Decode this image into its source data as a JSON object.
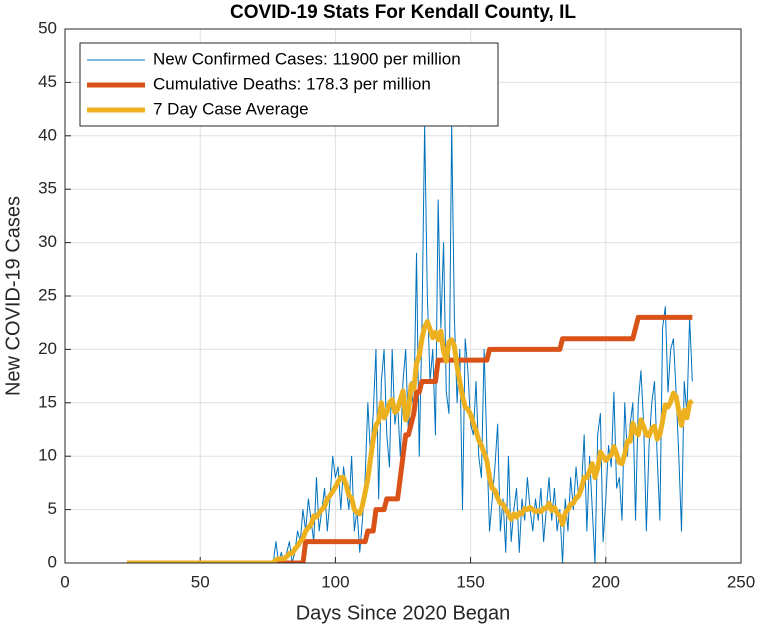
{
  "chart_data": {
    "type": "line",
    "title": "COVID-19 Stats For Kendall County, IL",
    "xlabel": "Days Since 2020 Began",
    "ylabel": "New COVID-19 Cases",
    "xlim": [
      0,
      250
    ],
    "xticks": [
      0,
      50,
      100,
      150,
      200,
      250
    ],
    "ylim": [
      0,
      50
    ],
    "yticks": [
      0,
      5,
      10,
      15,
      20,
      25,
      30,
      35,
      40,
      45,
      50
    ],
    "grid": true,
    "legend": "upper left",
    "x": [
      23,
      76,
      77,
      78,
      79,
      80,
      81,
      82,
      83,
      84,
      85,
      86,
      87,
      88,
      89,
      90,
      91,
      92,
      93,
      94,
      95,
      96,
      97,
      98,
      99,
      100,
      101,
      102,
      103,
      104,
      105,
      106,
      107,
      108,
      109,
      110,
      111,
      112,
      113,
      114,
      115,
      116,
      117,
      118,
      119,
      120,
      121,
      122,
      123,
      124,
      125,
      126,
      127,
      128,
      129,
      130,
      131,
      132,
      133,
      134,
      135,
      136,
      137,
      138,
      139,
      140,
      141,
      142,
      143,
      144,
      145,
      146,
      147,
      148,
      149,
      150,
      151,
      152,
      153,
      154,
      155,
      156,
      157,
      158,
      159,
      160,
      161,
      162,
      163,
      164,
      165,
      166,
      167,
      168,
      169,
      170,
      171,
      172,
      173,
      174,
      175,
      176,
      177,
      178,
      179,
      180,
      181,
      182,
      183,
      184,
      185,
      186,
      187,
      188,
      189,
      190,
      191,
      192,
      193,
      194,
      195,
      196,
      197,
      198,
      199,
      200,
      201,
      202,
      203,
      204,
      205,
      206,
      207,
      208,
      209,
      210,
      211,
      212,
      213,
      214,
      215,
      216,
      217,
      218,
      219,
      220,
      221,
      222,
      223,
      224,
      225,
      226,
      227,
      228,
      229,
      230,
      231,
      232
    ],
    "series": [
      {
        "name": "New Confirmed Cases: 11900 per million",
        "color": "#0072bd",
        "width": 1,
        "values": [
          0,
          0,
          0,
          2,
          0,
          1,
          0,
          1,
          2,
          0,
          1,
          3,
          2,
          5,
          3,
          6,
          4,
          2,
          8,
          3,
          5,
          7,
          3,
          6,
          10,
          8,
          9,
          5,
          9,
          7,
          5,
          10,
          3,
          5,
          1,
          4,
          8,
          15,
          10,
          14,
          20,
          6,
          17,
          20,
          12,
          9,
          20,
          13,
          15,
          10,
          17,
          20,
          12,
          17,
          14,
          29,
          10,
          22,
          41,
          25,
          17,
          20,
          12,
          34,
          22,
          30,
          16,
          14,
          41,
          23,
          15,
          20,
          5,
          21,
          18,
          13,
          12,
          17,
          10,
          8,
          20,
          11,
          3,
          6,
          9,
          13,
          3,
          6,
          1,
          10,
          2,
          5,
          7,
          1,
          6,
          4,
          8,
          5,
          3,
          6,
          4,
          7,
          2,
          5,
          8,
          4,
          7,
          3,
          5,
          0,
          6,
          3,
          8,
          5,
          9,
          6,
          7,
          12,
          3,
          10,
          5,
          0,
          12,
          14,
          2,
          6,
          11,
          9,
          16,
          7,
          8,
          4,
          15,
          10,
          13,
          15,
          4,
          15,
          18,
          13,
          3,
          11,
          15,
          17,
          10,
          4,
          22,
          24,
          16,
          20,
          21,
          16,
          10,
          3,
          17,
          14,
          23,
          17
        ]
      },
      {
        "name": "Cumulative Deaths: 178.3 per million",
        "color": "#d95319",
        "width": 5,
        "values": [
          0,
          0,
          0,
          0,
          0,
          0,
          0,
          0,
          0,
          0,
          0,
          0,
          0,
          0,
          2,
          2,
          2,
          2,
          2,
          2,
          2,
          2,
          2,
          2,
          2,
          2,
          2,
          2,
          2,
          2,
          2,
          2,
          2,
          2,
          2,
          2,
          2,
          3,
          3,
          3,
          5,
          5,
          5,
          5,
          6,
          6,
          6,
          6,
          6,
          8,
          10,
          12,
          12,
          13,
          14,
          16,
          16,
          17,
          17,
          17,
          17,
          17,
          17,
          19,
          19,
          19,
          19,
          19,
          19,
          19,
          19,
          19,
          19,
          19,
          19,
          19,
          19,
          19,
          19,
          19,
          19,
          19,
          20,
          20,
          20,
          20,
          20,
          20,
          20,
          20,
          20,
          20,
          20,
          20,
          20,
          20,
          20,
          20,
          20,
          20,
          20,
          20,
          20,
          20,
          20,
          20,
          20,
          20,
          20,
          21,
          21,
          21,
          21,
          21,
          21,
          21,
          21,
          21,
          21,
          21,
          21,
          21,
          21,
          21,
          21,
          21,
          21,
          21,
          21,
          21,
          21,
          21,
          21,
          21,
          21,
          21,
          22,
          23,
          23,
          23,
          23,
          23,
          23,
          23,
          23,
          23,
          23,
          23,
          23,
          23,
          23,
          23,
          23,
          23,
          23,
          23,
          23,
          23
        ]
      },
      {
        "name": "7 Day Case Average",
        "color": "#edb120",
        "width": 5,
        "values": [
          0,
          0,
          0,
          0.3,
          0.4,
          0.4,
          0.4,
          0.6,
          0.9,
          0.9,
          1.3,
          1.6,
          2,
          2.3,
          3,
          3.3,
          3.6,
          4.4,
          4.3,
          4.7,
          5,
          5.3,
          6,
          6.3,
          6.7,
          7.1,
          7.6,
          8,
          8,
          7.3,
          6.3,
          6.1,
          5,
          4.7,
          4.6,
          5.4,
          6.6,
          7.9,
          9.8,
          11.6,
          12.9,
          13.3,
          15,
          13.6,
          14.1,
          15,
          15.3,
          14.1,
          14.4,
          15.3,
          16.1,
          13.4,
          14.1,
          16.7,
          16.3,
          18.7,
          19.4,
          21,
          22.1,
          22.6,
          21.9,
          21.1,
          21.6,
          20.9,
          21.7,
          19.8,
          18.9,
          20.7,
          20.9,
          20.3,
          18.4,
          17,
          15.6,
          14.6,
          14.4,
          13.9,
          13.1,
          12.4,
          11.5,
          11,
          10.3,
          9.6,
          8,
          7,
          6.8,
          6.1,
          5.6,
          5.5,
          5,
          4.6,
          4.1,
          4.6,
          4.3,
          4.7,
          4.6,
          5.1,
          5,
          5.2,
          5,
          4.8,
          4.9,
          4.8,
          5.1,
          5.1,
          5.6,
          4.9,
          5.2,
          4.7,
          4.4,
          3.6,
          4.7,
          5,
          5.5,
          5.6,
          6.1,
          6.3,
          7,
          8,
          8,
          8.6,
          9.3,
          8,
          8.9,
          10.4,
          10,
          9.6,
          9.9,
          10.1,
          10.9,
          10.2,
          9.4,
          9.3,
          10.2,
          11.4,
          11.4,
          13.1,
          12.3,
          12,
          13.4,
          12.8,
          12,
          11.9,
          12.6,
          12.8,
          11.6,
          12,
          13.3,
          14.8,
          14.6,
          15.1,
          15.9,
          15.6,
          14.2,
          12.9,
          14.3,
          13.6,
          15,
          15.2
        ]
      }
    ]
  }
}
